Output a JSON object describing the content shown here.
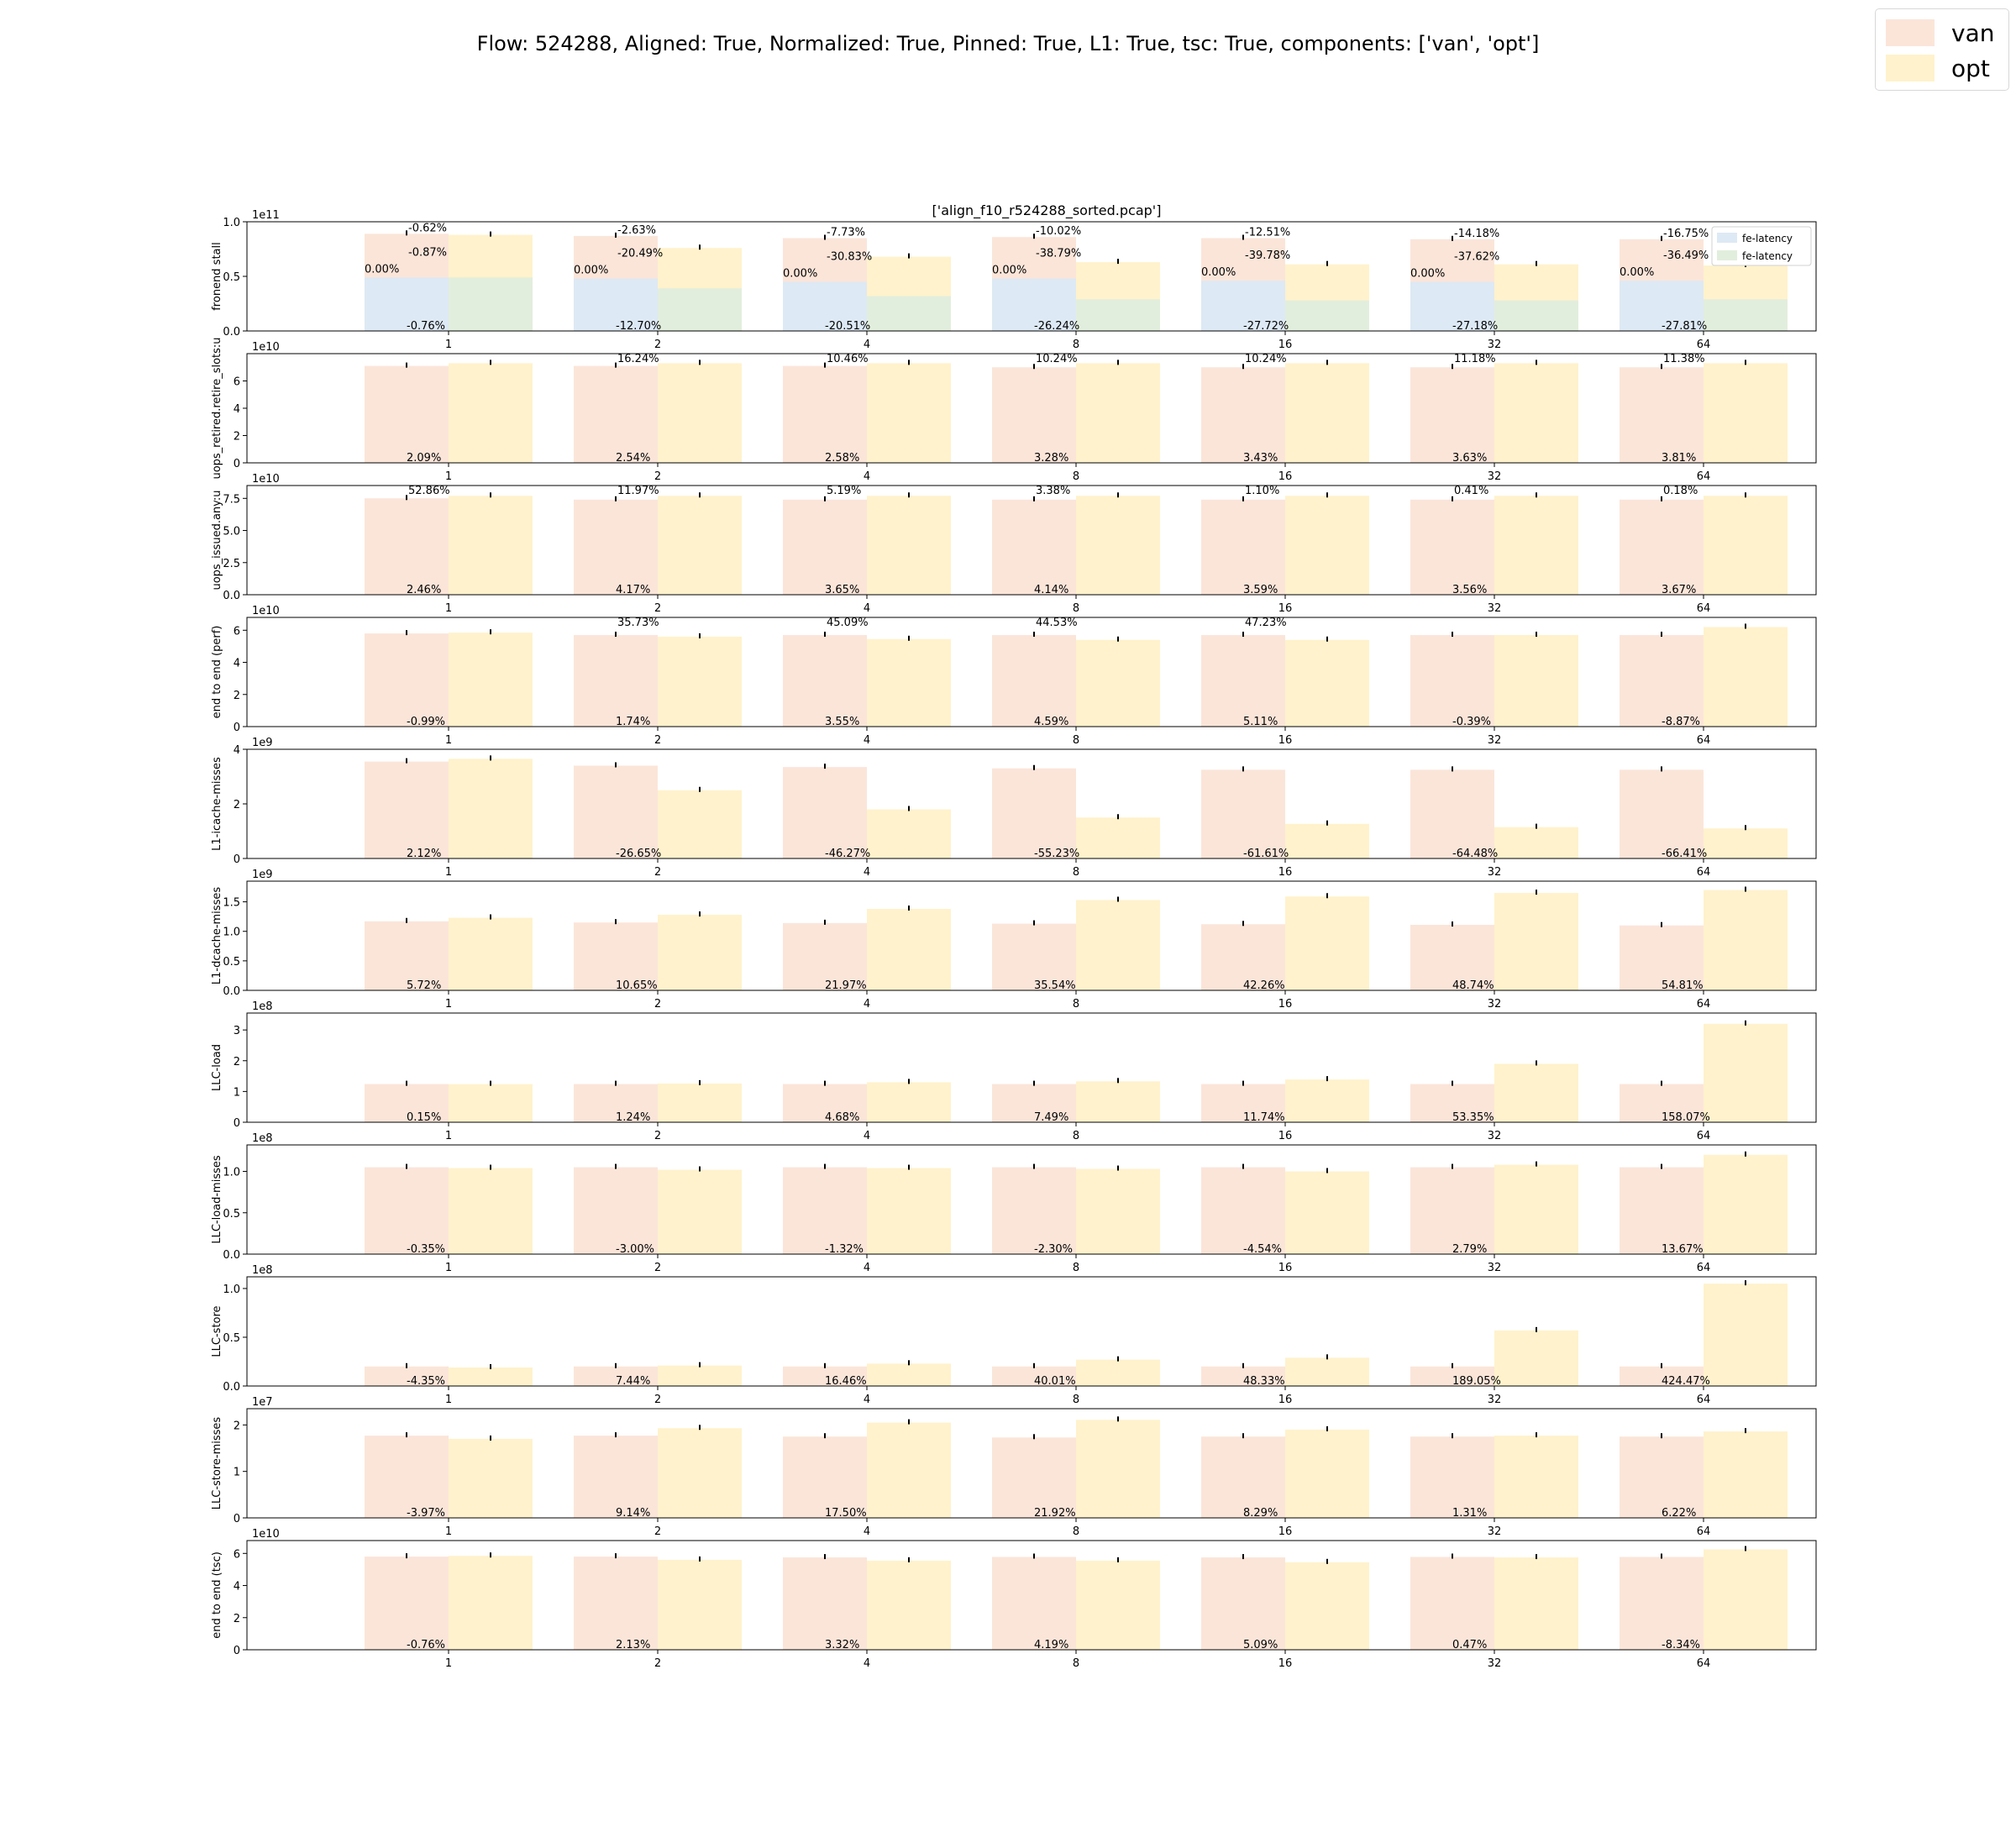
{
  "figure": {
    "title": "Flow: 524288, Aligned: True, Normalized: True, Pinned: True, L1: True, tsc: True, components: ['van', 'opt']",
    "legend": [
      {
        "name": "van",
        "color": "#fbe5d9"
      },
      {
        "name": "opt",
        "color": "#fff2cc"
      }
    ],
    "subplot_title": "['align_f10_r524288_sorted.pcap']"
  },
  "colors": {
    "van": "#fbe5d9",
    "opt": "#fff2cc",
    "van_fe": "#dde9f4",
    "opt_fe": "#e2eedd"
  },
  "chart_data": [
    {
      "type": "bar",
      "ylabel": "fronend stall",
      "multiplier": "1e11",
      "ylim": [
        0,
        1.0
      ],
      "yticks": [
        "0.0",
        "0.5",
        "1.0"
      ],
      "categories": [
        "1",
        "2",
        "4",
        "8",
        "16",
        "32",
        "64"
      ],
      "series": [
        {
          "name": "van",
          "values": [
            0.89,
            0.87,
            0.85,
            0.86,
            0.85,
            0.84,
            0.84
          ]
        },
        {
          "name": "opt",
          "values": [
            0.88,
            0.76,
            0.68,
            0.63,
            0.61,
            0.61,
            0.6
          ]
        },
        {
          "name": "fe-latency",
          "values": [
            0.49,
            0.48,
            0.45,
            0.48,
            0.46,
            0.45,
            0.46
          ]
        },
        {
          "name": "fe-latency",
          "values": [
            0.49,
            0.39,
            0.32,
            0.29,
            0.28,
            0.28,
            0.29
          ]
        }
      ],
      "top_labels": [
        "-0.62%",
        "-2.63%",
        "-7.73%",
        "-10.02%",
        "-12.51%",
        "-14.18%",
        "-16.75%"
      ],
      "mid_labels_van": [
        "0.00%",
        "0.00%",
        "0.00%",
        "0.00%",
        "0.00%",
        "0.00%",
        "0.00%"
      ],
      "mid_labels_opt": [
        "-0.87%",
        "-20.49%",
        "-30.83%",
        "-38.79%",
        "-39.78%",
        "-37.62%",
        "-36.49%"
      ],
      "bottom_labels": [
        "-0.76%",
        "-12.70%",
        "-20.51%",
        "-26.24%",
        "-27.72%",
        "-27.18%",
        "-27.81%"
      ],
      "legend": [
        "fe-latency",
        "fe-latency"
      ],
      "legend_position": "top-right"
    },
    {
      "type": "bar",
      "ylabel": "uops_retired.retire_slots:u",
      "multiplier": "1e10",
      "ylim": [
        0,
        8
      ],
      "yticks": [
        "0",
        "2",
        "4",
        "6"
      ],
      "categories": [
        "1",
        "2",
        "4",
        "8",
        "16",
        "32",
        "64"
      ],
      "series": [
        {
          "name": "van",
          "values": [
            7.1,
            7.1,
            7.1,
            7.0,
            7.0,
            7.0,
            7.0
          ]
        },
        {
          "name": "opt",
          "values": [
            7.3,
            7.3,
            7.3,
            7.3,
            7.3,
            7.3,
            7.3
          ]
        }
      ],
      "top_labels": [
        "",
        "16.24%",
        "10.46%",
        "10.24%",
        "10.24%",
        "11.18%",
        "11.38%"
      ],
      "bottom_labels": [
        "2.09%",
        "2.54%",
        "2.58%",
        "3.28%",
        "3.43%",
        "3.63%",
        "3.81%"
      ]
    },
    {
      "type": "bar",
      "ylabel": "uops_issued.any:u",
      "multiplier": "1e10",
      "ylim": [
        0,
        8.5
      ],
      "yticks": [
        "0.0",
        "2.5",
        "5.0",
        "7.5"
      ],
      "categories": [
        "1",
        "2",
        "4",
        "8",
        "16",
        "32",
        "64"
      ],
      "series": [
        {
          "name": "van",
          "values": [
            7.5,
            7.4,
            7.4,
            7.4,
            7.4,
            7.4,
            7.4
          ]
        },
        {
          "name": "opt",
          "values": [
            7.7,
            7.7,
            7.7,
            7.7,
            7.7,
            7.7,
            7.7
          ]
        }
      ],
      "top_labels": [
        "52.86%",
        "11.97%",
        "5.19%",
        "3.38%",
        "1.10%",
        "0.41%",
        "0.18%"
      ],
      "bottom_labels": [
        "2.46%",
        "4.17%",
        "3.65%",
        "4.14%",
        "3.59%",
        "3.56%",
        "3.67%"
      ]
    },
    {
      "type": "bar",
      "ylabel": "end to end (perf)",
      "multiplier": "1e10",
      "ylim": [
        0,
        6.8
      ],
      "yticks": [
        "0",
        "2",
        "4",
        "6"
      ],
      "categories": [
        "1",
        "2",
        "4",
        "8",
        "16",
        "32",
        "64"
      ],
      "series": [
        {
          "name": "van",
          "values": [
            5.8,
            5.7,
            5.7,
            5.7,
            5.7,
            5.7,
            5.7
          ]
        },
        {
          "name": "opt",
          "values": [
            5.85,
            5.6,
            5.45,
            5.4,
            5.4,
            5.7,
            6.2
          ]
        }
      ],
      "top_labels": [
        "",
        "35.73%",
        "45.09%",
        "44.53%",
        "47.23%",
        "",
        ""
      ],
      "bottom_labels": [
        "-0.99%",
        "1.74%",
        "3.55%",
        "4.59%",
        "5.11%",
        "-0.39%",
        "-8.87%"
      ]
    },
    {
      "type": "bar",
      "ylabel": "L1-icache-misses",
      "multiplier": "1e9",
      "ylim": [
        0,
        4
      ],
      "yticks": [
        "0",
        "2",
        "4"
      ],
      "categories": [
        "1",
        "2",
        "4",
        "8",
        "16",
        "32",
        "64"
      ],
      "series": [
        {
          "name": "van",
          "values": [
            3.55,
            3.4,
            3.35,
            3.3,
            3.25,
            3.25,
            3.25
          ]
        },
        {
          "name": "opt",
          "values": [
            3.65,
            2.5,
            1.8,
            1.5,
            1.27,
            1.15,
            1.1
          ]
        }
      ],
      "top_labels": [
        "",
        "",
        "",
        "",
        "",
        "",
        ""
      ],
      "bottom_labels": [
        "2.12%",
        "-26.65%",
        "-46.27%",
        "-55.23%",
        "-61.61%",
        "-64.48%",
        "-66.41%"
      ]
    },
    {
      "type": "bar",
      "ylabel": "L1-dcache-misses",
      "multiplier": "1e9",
      "ylim": [
        0,
        1.85
      ],
      "yticks": [
        "0.0",
        "0.5",
        "1.0",
        "1.5"
      ],
      "categories": [
        "1",
        "2",
        "4",
        "8",
        "16",
        "32",
        "64"
      ],
      "series": [
        {
          "name": "van",
          "values": [
            1.17,
            1.15,
            1.14,
            1.13,
            1.12,
            1.11,
            1.1
          ]
        },
        {
          "name": "opt",
          "values": [
            1.23,
            1.28,
            1.38,
            1.53,
            1.59,
            1.65,
            1.7
          ]
        }
      ],
      "top_labels": [
        "",
        "",
        "",
        "",
        "",
        "",
        ""
      ],
      "bottom_labels": [
        "5.72%",
        "10.65%",
        "21.97%",
        "35.54%",
        "42.26%",
        "48.74%",
        "54.81%"
      ]
    },
    {
      "type": "bar",
      "ylabel": "LLC-load",
      "multiplier": "1e8",
      "ylim": [
        0,
        3.55
      ],
      "yticks": [
        "0",
        "1",
        "2",
        "3"
      ],
      "categories": [
        "1",
        "2",
        "4",
        "8",
        "16",
        "32",
        "64"
      ],
      "series": [
        {
          "name": "van",
          "values": [
            1.24,
            1.24,
            1.24,
            1.24,
            1.24,
            1.24,
            1.24
          ]
        },
        {
          "name": "opt",
          "values": [
            1.24,
            1.26,
            1.3,
            1.33,
            1.39,
            1.9,
            3.2
          ]
        }
      ],
      "top_labels": [
        "",
        "",
        "",
        "",
        "",
        "",
        ""
      ],
      "bottom_labels": [
        "0.15%",
        "1.24%",
        "4.68%",
        "7.49%",
        "11.74%",
        "53.35%",
        "158.07%"
      ]
    },
    {
      "type": "bar",
      "ylabel": "LLC-load-misses",
      "multiplier": "1e8",
      "ylim": [
        0,
        1.32
      ],
      "yticks": [
        "0.0",
        "0.5",
        "1.0"
      ],
      "categories": [
        "1",
        "2",
        "4",
        "8",
        "16",
        "32",
        "64"
      ],
      "series": [
        {
          "name": "van",
          "values": [
            1.05,
            1.05,
            1.05,
            1.05,
            1.05,
            1.05,
            1.05
          ]
        },
        {
          "name": "opt",
          "values": [
            1.04,
            1.02,
            1.04,
            1.03,
            1.0,
            1.08,
            1.2
          ]
        }
      ],
      "top_labels": [
        "",
        "",
        "",
        "",
        "",
        "",
        ""
      ],
      "bottom_labels": [
        "-0.35%",
        "-3.00%",
        "-1.32%",
        "-2.30%",
        "-4.54%",
        "2.79%",
        "13.67%"
      ]
    },
    {
      "type": "bar",
      "ylabel": "LLC-store",
      "multiplier": "1e8",
      "ylim": [
        0,
        1.12
      ],
      "yticks": [
        "0.0",
        "0.5",
        "1.0"
      ],
      "categories": [
        "1",
        "2",
        "4",
        "8",
        "16",
        "32",
        "64"
      ],
      "series": [
        {
          "name": "van",
          "values": [
            0.2,
            0.2,
            0.2,
            0.2,
            0.2,
            0.2,
            0.2
          ]
        },
        {
          "name": "opt",
          "values": [
            0.19,
            0.21,
            0.23,
            0.27,
            0.29,
            0.57,
            1.05
          ]
        }
      ],
      "top_labels": [
        "",
        "",
        "",
        "",
        "",
        "",
        ""
      ],
      "bottom_labels": [
        "-4.35%",
        "7.44%",
        "16.46%",
        "40.01%",
        "48.33%",
        "189.05%",
        "424.47%"
      ]
    },
    {
      "type": "bar",
      "ylabel": "LLC-store-misses",
      "multiplier": "1e7",
      "ylim": [
        0,
        2.35
      ],
      "yticks": [
        "0",
        "1",
        "2"
      ],
      "categories": [
        "1",
        "2",
        "4",
        "8",
        "16",
        "32",
        "64"
      ],
      "series": [
        {
          "name": "van",
          "values": [
            1.77,
            1.77,
            1.75,
            1.73,
            1.75,
            1.75,
            1.75
          ]
        },
        {
          "name": "opt",
          "values": [
            1.7,
            1.93,
            2.05,
            2.11,
            1.9,
            1.77,
            1.86
          ]
        }
      ],
      "top_labels": [
        "",
        "",
        "",
        "",
        "",
        "",
        ""
      ],
      "bottom_labels": [
        "-3.97%",
        "9.14%",
        "17.50%",
        "21.92%",
        "8.29%",
        "1.31%",
        "6.22%"
      ]
    },
    {
      "type": "bar",
      "ylabel": "end to end (tsc)",
      "multiplier": "1e10",
      "ylim": [
        0,
        6.8
      ],
      "yticks": [
        "0",
        "2",
        "4",
        "6"
      ],
      "categories": [
        "1",
        "2",
        "4",
        "8",
        "16",
        "32",
        "64"
      ],
      "series": [
        {
          "name": "van",
          "values": [
            5.8,
            5.8,
            5.75,
            5.78,
            5.75,
            5.78,
            5.78
          ]
        },
        {
          "name": "opt",
          "values": [
            5.85,
            5.6,
            5.55,
            5.55,
            5.45,
            5.75,
            6.25
          ]
        }
      ],
      "top_labels": [
        "",
        "",
        "",
        "",
        "",
        "",
        ""
      ],
      "bottom_labels": [
        "-0.76%",
        "2.13%",
        "3.32%",
        "4.19%",
        "5.09%",
        "0.47%",
        "-8.34%"
      ]
    }
  ]
}
